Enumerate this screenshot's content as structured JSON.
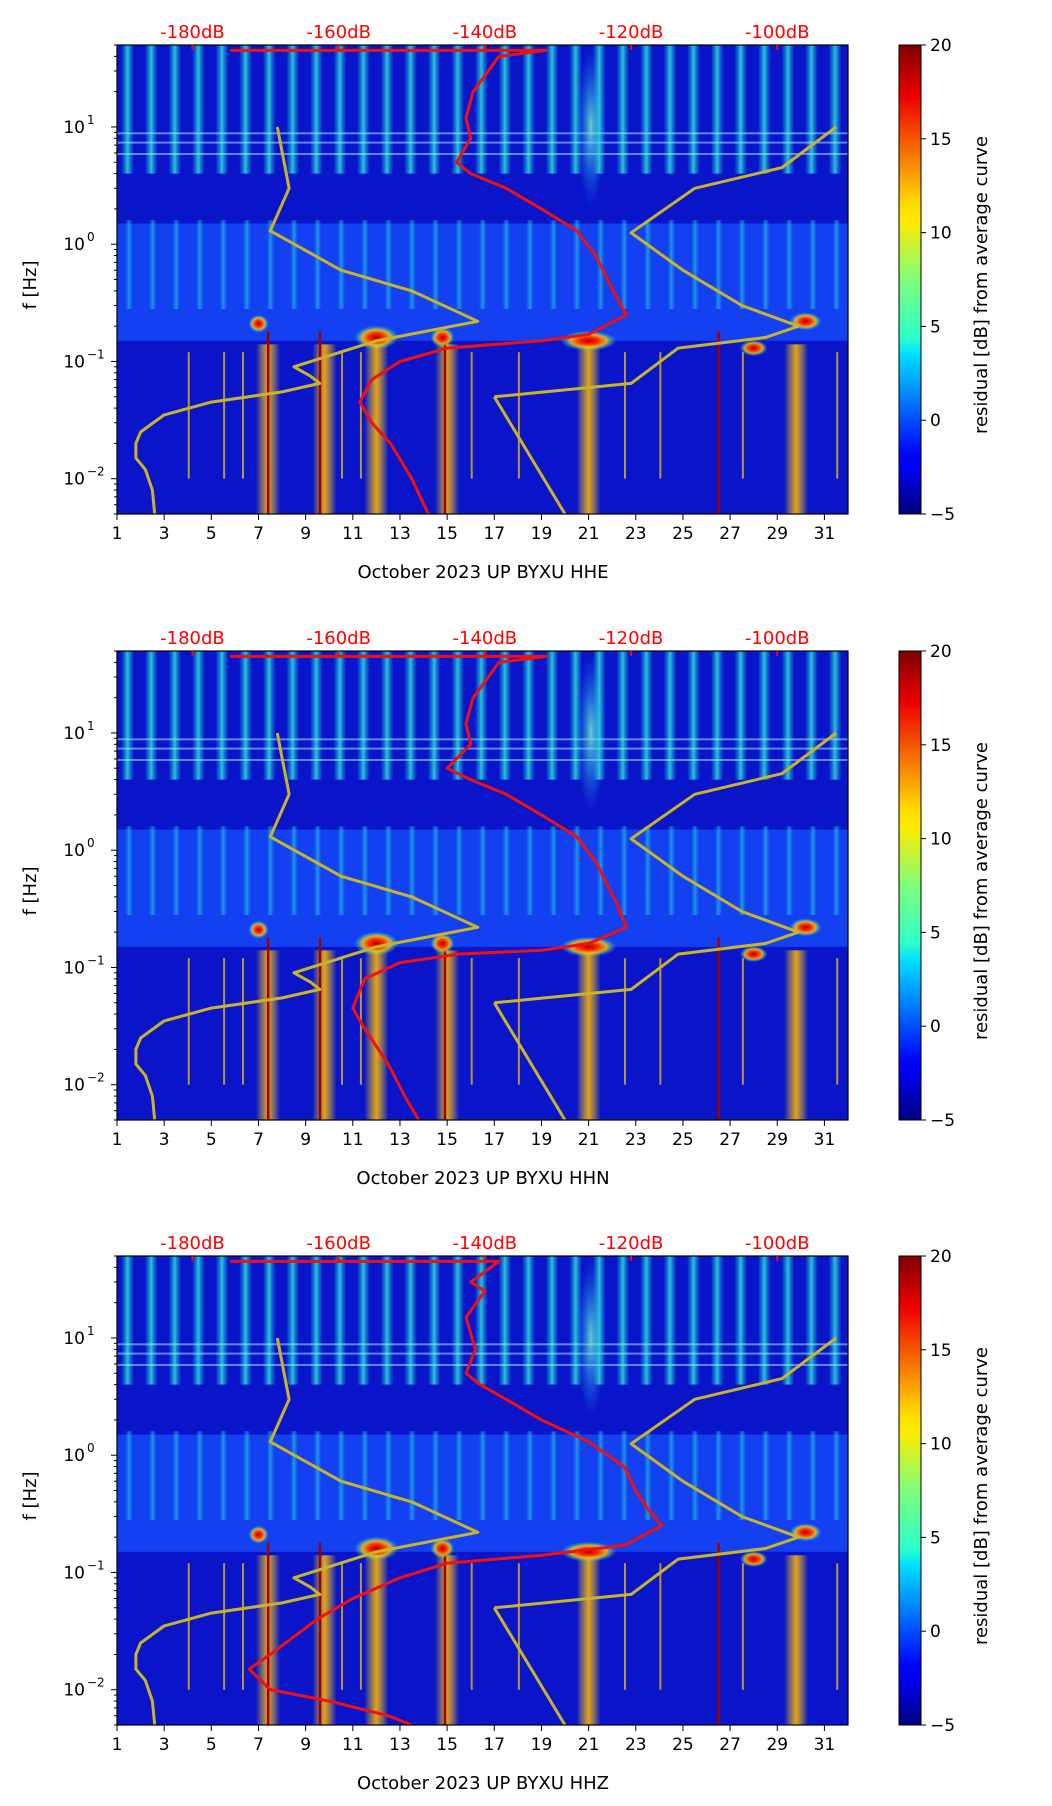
{
  "chart_data": [
    {
      "type": "heatmap",
      "title": "",
      "xlabel": "October 2023 UP BYXU  HHE",
      "ylabel": "f [Hz]",
      "colorbar_label": "residual [dB] from average curve",
      "xlim": [
        1,
        32
      ],
      "ylim_hz": [
        0.005,
        50
      ],
      "yscale": "log",
      "xticks": [
        "1",
        "3",
        "5",
        "7",
        "9",
        "11",
        "13",
        "15",
        "17",
        "19",
        "21",
        "23",
        "25",
        "27",
        "29",
        "31"
      ],
      "yticks": [
        {
          "value": 0.01,
          "base": "10",
          "exp": "−2"
        },
        {
          "value": 0.1,
          "base": "10",
          "exp": "−1"
        },
        {
          "value": 1,
          "base": "10",
          "exp": "0"
        },
        {
          "value": 10,
          "base": "10",
          "exp": "1"
        }
      ],
      "top_axis_db_labels": [
        "-180dB",
        "-160dB",
        "-140dB",
        "-120dB",
        "-100dB"
      ],
      "top_axis_db_positions_day": [
        4.2,
        10.4,
        16.6,
        22.8,
        29.0
      ],
      "colorbar": {
        "min": -5,
        "max": 20,
        "ticks": [
          "20",
          "15",
          "10",
          "5",
          "0",
          "−5"
        ]
      },
      "hot_days": [
        7.4,
        9.8,
        12.0,
        15.0,
        21.0,
        29.8
      ],
      "series": [
        {
          "name": "median PSD (top axis dB)",
          "color": "#ee1111",
          "points": [
            [
              5.8,
              45
            ],
            [
              19.2,
              45
            ],
            [
              17.2,
              40
            ],
            [
              16.1,
              20
            ],
            [
              15.8,
              12
            ],
            [
              16.0,
              8
            ],
            [
              15.4,
              5
            ],
            [
              16.0,
              4
            ],
            [
              17.5,
              3
            ],
            [
              19.0,
              2
            ],
            [
              20.5,
              1.3
            ],
            [
              21.3,
              0.8
            ],
            [
              21.8,
              0.5
            ],
            [
              22.2,
              0.35
            ],
            [
              22.6,
              0.25
            ],
            [
              21.0,
              0.17
            ],
            [
              19.0,
              0.15
            ],
            [
              15.0,
              0.13
            ],
            [
              13.0,
              0.1
            ],
            [
              11.8,
              0.07
            ],
            [
              11.3,
              0.045
            ],
            [
              11.8,
              0.03
            ],
            [
              12.6,
              0.02
            ],
            [
              13.5,
              0.01
            ],
            [
              14.2,
              0.005
            ]
          ]
        },
        {
          "name": "reference model (top axis dB)",
          "color": "#c8b42a",
          "points": [
            [
              7.8,
              10
            ],
            [
              8.3,
              3
            ],
            [
              7.5,
              1.3
            ],
            [
              10.5,
              0.6
            ],
            [
              13.5,
              0.4
            ],
            [
              16.3,
              0.22
            ],
            [
              12.0,
              0.15
            ],
            [
              8.5,
              0.09
            ],
            [
              9.2,
              0.075
            ],
            [
              9.6,
              0.065
            ],
            [
              8.0,
              0.055
            ],
            [
              5.0,
              0.045
            ],
            [
              3.0,
              0.035
            ],
            [
              2.0,
              0.025
            ],
            [
              1.8,
              0.02
            ],
            [
              1.8,
              0.015
            ],
            [
              2.2,
              0.012
            ],
            [
              2.5,
              0.008
            ],
            [
              2.6,
              0.005
            ]
          ]
        },
        {
          "name": "reference model (top axis dB)",
          "color": "#c8b42a",
          "points": [
            [
              17.0,
              0.05
            ],
            [
              20.0,
              0.005
            ]
          ]
        },
        {
          "name": "reference model (top axis dB)",
          "color": "#c8b42a",
          "points": [
            [
              17.0,
              0.05
            ],
            [
              22.8,
              0.065
            ],
            [
              24.8,
              0.13
            ],
            [
              28.5,
              0.16
            ],
            [
              29.9,
              0.2
            ],
            [
              27.5,
              0.3
            ],
            [
              25.0,
              0.6
            ],
            [
              22.8,
              1.25
            ],
            [
              25.5,
              3
            ],
            [
              29.2,
              4.5
            ],
            [
              31.5,
              10
            ]
          ]
        }
      ]
    },
    {
      "type": "heatmap",
      "title": "",
      "xlabel": "October 2023 UP BYXU  HHN",
      "ylabel": "f [Hz]",
      "colorbar_label": "residual [dB] from average curve",
      "xlim": [
        1,
        32
      ],
      "ylim_hz": [
        0.005,
        50
      ],
      "yscale": "log",
      "xticks": [
        "1",
        "3",
        "5",
        "7",
        "9",
        "11",
        "13",
        "15",
        "17",
        "19",
        "21",
        "23",
        "25",
        "27",
        "29",
        "31"
      ],
      "yticks": [
        {
          "value": 0.01,
          "base": "10",
          "exp": "−2"
        },
        {
          "value": 0.1,
          "base": "10",
          "exp": "−1"
        },
        {
          "value": 1,
          "base": "10",
          "exp": "0"
        },
        {
          "value": 10,
          "base": "10",
          "exp": "1"
        }
      ],
      "top_axis_db_labels": [
        "-180dB",
        "-160dB",
        "-140dB",
        "-120dB",
        "-100dB"
      ],
      "top_axis_db_positions_day": [
        4.2,
        10.4,
        16.6,
        22.8,
        29.0
      ],
      "colorbar": {
        "min": -5,
        "max": 20,
        "ticks": [
          "20",
          "15",
          "10",
          "5",
          "0",
          "−5"
        ]
      },
      "hot_days": [
        7.4,
        9.8,
        12.0,
        15.0,
        21.0,
        29.8
      ],
      "series": [
        {
          "name": "median PSD (top axis dB)",
          "color": "#ee1111",
          "points": [
            [
              5.8,
              45
            ],
            [
              19.2,
              45
            ],
            [
              17.2,
              40
            ],
            [
              16.1,
              20
            ],
            [
              15.8,
              12
            ],
            [
              16.0,
              8
            ],
            [
              15.0,
              5
            ],
            [
              16.0,
              4
            ],
            [
              17.5,
              3
            ],
            [
              19.0,
              2
            ],
            [
              20.5,
              1.3
            ],
            [
              21.3,
              0.8
            ],
            [
              21.8,
              0.5
            ],
            [
              22.2,
              0.35
            ],
            [
              22.6,
              0.22
            ],
            [
              21.0,
              0.16
            ],
            [
              19.0,
              0.14
            ],
            [
              15.5,
              0.13
            ],
            [
              13.0,
              0.11
            ],
            [
              11.5,
              0.08
            ],
            [
              11.0,
              0.045
            ],
            [
              11.5,
              0.03
            ],
            [
              12.5,
              0.015
            ],
            [
              13.2,
              0.008
            ],
            [
              13.8,
              0.005
            ]
          ]
        },
        {
          "name": "reference model (top axis dB)",
          "color": "#c8b42a",
          "points": [
            [
              7.8,
              10
            ],
            [
              8.3,
              3
            ],
            [
              7.5,
              1.3
            ],
            [
              10.5,
              0.6
            ],
            [
              13.5,
              0.4
            ],
            [
              16.3,
              0.22
            ],
            [
              12.0,
              0.15
            ],
            [
              8.5,
              0.09
            ],
            [
              9.2,
              0.075
            ],
            [
              9.6,
              0.065
            ],
            [
              8.0,
              0.055
            ],
            [
              5.0,
              0.045
            ],
            [
              3.0,
              0.035
            ],
            [
              2.0,
              0.025
            ],
            [
              1.8,
              0.02
            ],
            [
              1.8,
              0.015
            ],
            [
              2.2,
              0.012
            ],
            [
              2.5,
              0.008
            ],
            [
              2.6,
              0.005
            ]
          ]
        },
        {
          "name": "reference model (top axis dB)",
          "color": "#c8b42a",
          "points": [
            [
              17.0,
              0.05
            ],
            [
              20.0,
              0.005
            ]
          ]
        },
        {
          "name": "reference model (top axis dB)",
          "color": "#c8b42a",
          "points": [
            [
              17.0,
              0.05
            ],
            [
              22.8,
              0.065
            ],
            [
              24.8,
              0.13
            ],
            [
              28.5,
              0.16
            ],
            [
              29.9,
              0.2
            ],
            [
              27.5,
              0.3
            ],
            [
              25.0,
              0.6
            ],
            [
              22.8,
              1.25
            ],
            [
              25.5,
              3
            ],
            [
              29.2,
              4.5
            ],
            [
              31.5,
              10
            ]
          ]
        }
      ]
    },
    {
      "type": "heatmap",
      "title": "",
      "xlabel": "October 2023 UP BYXU  HHZ",
      "ylabel": "f [Hz]",
      "colorbar_label": "residual [dB] from average curve",
      "xlim": [
        1,
        32
      ],
      "ylim_hz": [
        0.005,
        50
      ],
      "yscale": "log",
      "xticks": [
        "1",
        "3",
        "5",
        "7",
        "9",
        "11",
        "13",
        "15",
        "17",
        "19",
        "21",
        "23",
        "25",
        "27",
        "29",
        "31"
      ],
      "yticks": [
        {
          "value": 0.01,
          "base": "10",
          "exp": "−2"
        },
        {
          "value": 0.1,
          "base": "10",
          "exp": "−1"
        },
        {
          "value": 1,
          "base": "10",
          "exp": "0"
        },
        {
          "value": 10,
          "base": "10",
          "exp": "1"
        }
      ],
      "top_axis_db_labels": [
        "-180dB",
        "-160dB",
        "-140dB",
        "-120dB",
        "-100dB"
      ],
      "top_axis_db_positions_day": [
        4.2,
        10.4,
        16.6,
        22.8,
        29.0
      ],
      "colorbar": {
        "min": -5,
        "max": 20,
        "ticks": [
          "20",
          "15",
          "10",
          "5",
          "0",
          "−5"
        ]
      },
      "hot_days": [
        7.4,
        9.8,
        12.0,
        15.0,
        21.0,
        29.8
      ],
      "series": [
        {
          "name": "median PSD (top axis dB)",
          "color": "#ee1111",
          "points": [
            [
              5.8,
              45
            ],
            [
              17.2,
              45
            ],
            [
              16.0,
              30
            ],
            [
              16.6,
              25
            ],
            [
              15.8,
              15
            ],
            [
              16.2,
              8
            ],
            [
              15.8,
              5
            ],
            [
              16.4,
              4
            ],
            [
              17.5,
              3
            ],
            [
              19.0,
              2
            ],
            [
              21.0,
              1.3
            ],
            [
              22.5,
              0.8
            ],
            [
              23.0,
              0.5
            ],
            [
              23.5,
              0.35
            ],
            [
              24.1,
              0.25
            ],
            [
              22.5,
              0.17
            ],
            [
              19.0,
              0.14
            ],
            [
              15.0,
              0.12
            ],
            [
              13.0,
              0.09
            ],
            [
              11.0,
              0.06
            ],
            [
              9.5,
              0.04
            ],
            [
              7.5,
              0.02
            ],
            [
              6.6,
              0.015
            ],
            [
              7.5,
              0.01
            ],
            [
              10.0,
              0.008
            ],
            [
              12.5,
              0.006
            ],
            [
              13.5,
              0.005
            ]
          ]
        },
        {
          "name": "reference model (top axis dB)",
          "color": "#c8b42a",
          "points": [
            [
              7.8,
              10
            ],
            [
              8.3,
              3
            ],
            [
              7.5,
              1.3
            ],
            [
              10.5,
              0.6
            ],
            [
              13.5,
              0.4
            ],
            [
              16.3,
              0.22
            ],
            [
              12.0,
              0.15
            ],
            [
              8.5,
              0.09
            ],
            [
              9.2,
              0.075
            ],
            [
              9.6,
              0.065
            ],
            [
              8.0,
              0.055
            ],
            [
              5.0,
              0.045
            ],
            [
              3.0,
              0.035
            ],
            [
              2.0,
              0.025
            ],
            [
              1.8,
              0.02
            ],
            [
              1.8,
              0.015
            ],
            [
              2.2,
              0.012
            ],
            [
              2.5,
              0.008
            ],
            [
              2.6,
              0.005
            ]
          ]
        },
        {
          "name": "reference model (top axis dB)",
          "color": "#c8b42a",
          "points": [
            [
              17.0,
              0.05
            ],
            [
              20.0,
              0.005
            ]
          ]
        },
        {
          "name": "reference model (top axis dB)",
          "color": "#c8b42a",
          "points": [
            [
              17.0,
              0.05
            ],
            [
              22.8,
              0.065
            ],
            [
              24.8,
              0.13
            ],
            [
              28.5,
              0.16
            ],
            [
              29.9,
              0.2
            ],
            [
              27.5,
              0.3
            ],
            [
              25.0,
              0.6
            ],
            [
              22.8,
              1.25
            ],
            [
              25.5,
              3
            ],
            [
              29.2,
              4.5
            ],
            [
              31.5,
              10
            ]
          ]
        }
      ]
    }
  ]
}
